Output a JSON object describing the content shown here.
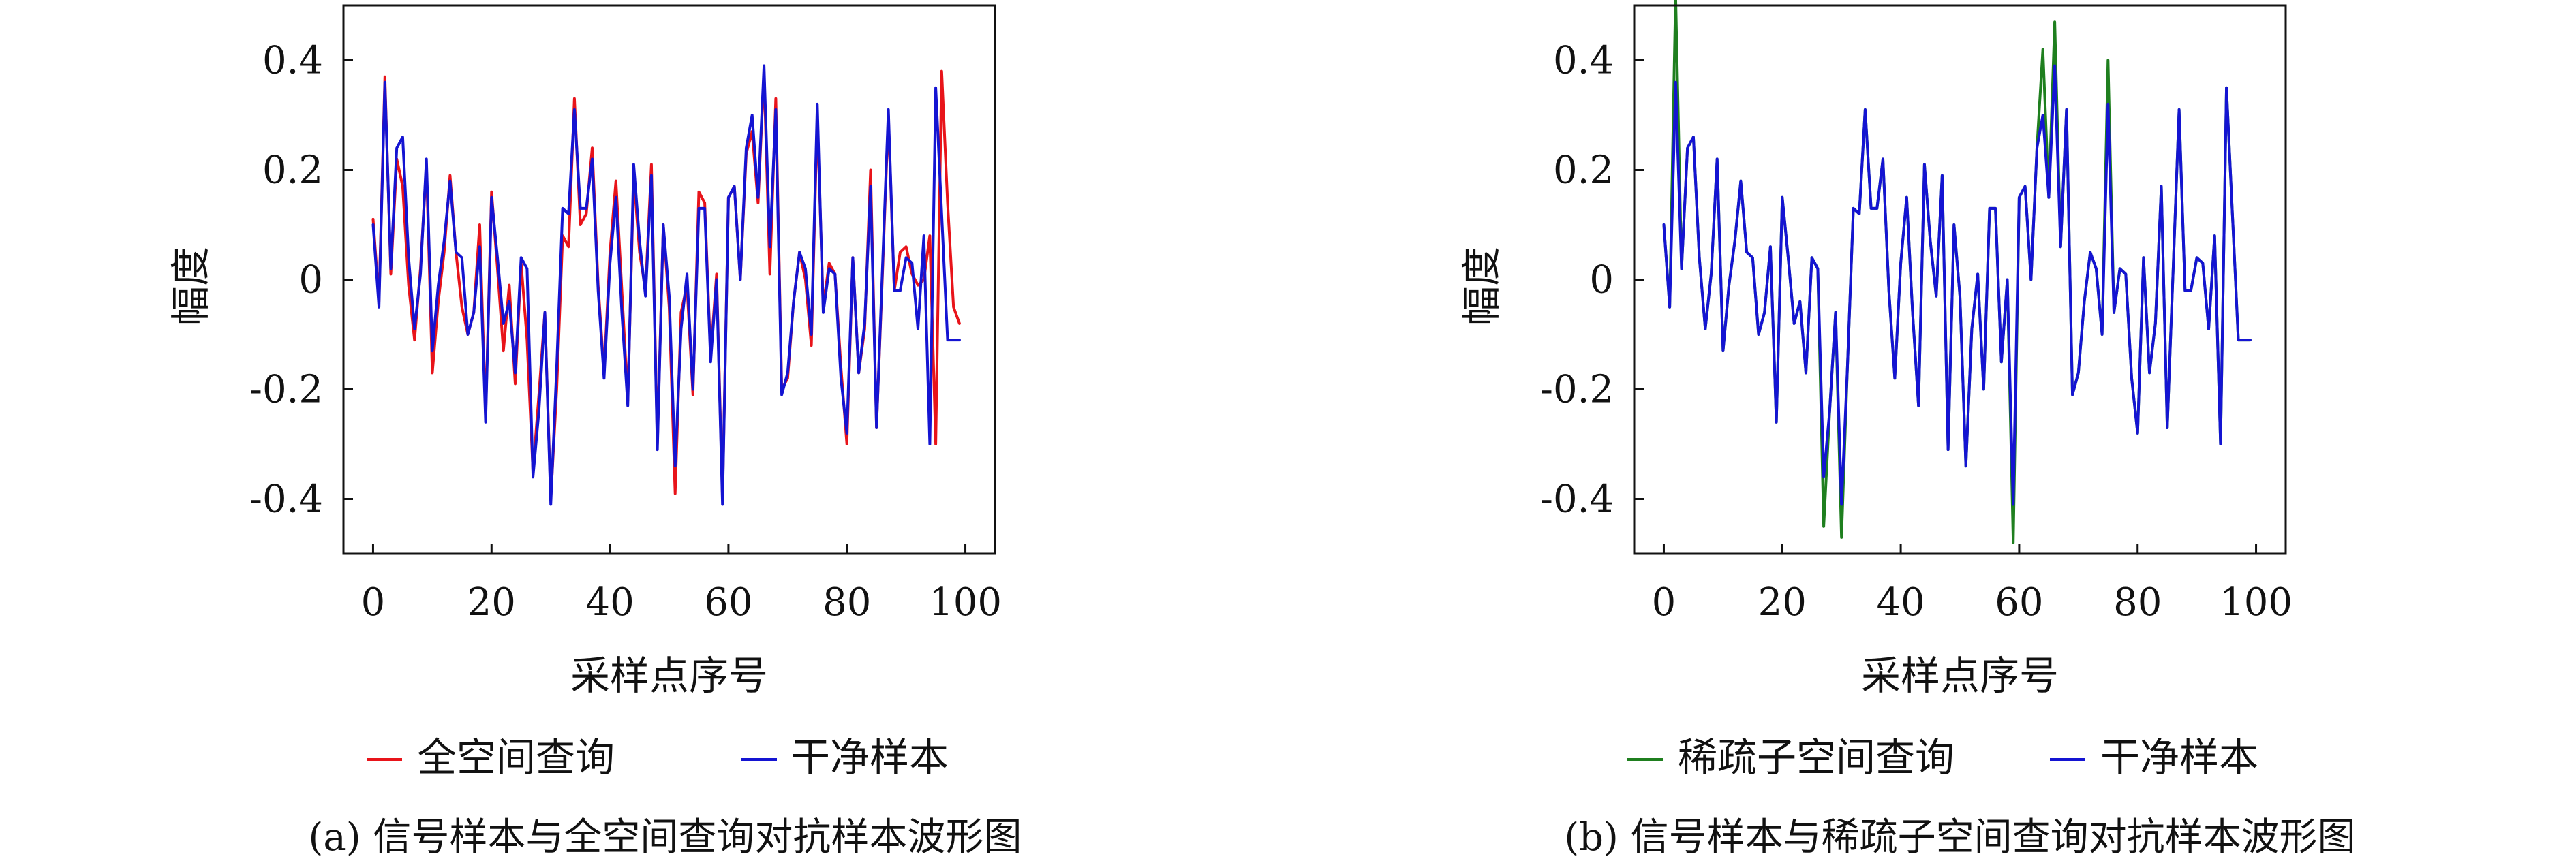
{
  "figure": {
    "xlabel": "采样点序号",
    "ylabel": "幅度",
    "xticks": [
      "0",
      "20",
      "40",
      "60",
      "80",
      "100"
    ],
    "yticks": [
      "0.4",
      "0.2",
      "0",
      "-0.2",
      "-0.4"
    ]
  },
  "colors": {
    "red": "#e8141a",
    "blue": "#1414d2",
    "green": "#1f7f1f"
  },
  "chart_data": [
    {
      "type": "line",
      "caption": "(a) 信号样本与全空间查询对抗样本波形图",
      "xlabel": "采样点序号",
      "ylabel": "幅度",
      "xlim": [
        -5,
        105
      ],
      "ylim": [
        -0.5,
        0.5
      ],
      "xticks": [
        0,
        20,
        40,
        60,
        80,
        100
      ],
      "yticks": [
        0.4,
        0.2,
        0,
        -0.2,
        -0.4
      ],
      "legend_position": "bottom",
      "series": [
        {
          "name": "全空间查询",
          "color": "#e8141a",
          "values": [
            0.11,
            -0.04,
            0.37,
            0.01,
            0.22,
            0.17,
            -0.01,
            -0.11,
            0.02,
            0.21,
            -0.17,
            -0.04,
            0.05,
            0.19,
            0.05,
            -0.05,
            -0.1,
            -0.06,
            0.1,
            -0.25,
            0.16,
            0.02,
            -0.13,
            -0.01,
            -0.19,
            0.03,
            -0.11,
            -0.35,
            -0.21,
            -0.06,
            -0.4,
            -0.2,
            0.08,
            0.06,
            0.33,
            0.1,
            0.12,
            0.24,
            -0.01,
            -0.17,
            0.05,
            0.18,
            -0.02,
            -0.22,
            0.19,
            0.05,
            -0.02,
            0.21,
            -0.3,
            0.1,
            -0.05,
            -0.39,
            -0.06,
            -0.01,
            -0.21,
            0.16,
            0.14,
            -0.14,
            0.01,
            -0.4,
            0.15,
            0.17,
            0.0,
            0.23,
            0.27,
            0.14,
            0.38,
            0.01,
            0.33,
            -0.2,
            -0.18,
            -0.04,
            0.05,
            0.0,
            -0.12,
            0.3,
            -0.05,
            0.03,
            0.01,
            -0.16,
            -0.3,
            0.04,
            -0.17,
            -0.09,
            0.2,
            -0.27,
            0.01,
            0.3,
            -0.02,
            0.05,
            0.06,
            0.01,
            -0.01,
            0.0,
            0.08,
            -0.3,
            0.38,
            0.14,
            -0.05,
            -0.08
          ]
        },
        {
          "name": "干净样本",
          "color": "#1414d2",
          "values": [
            0.1,
            -0.05,
            0.36,
            0.02,
            0.24,
            0.26,
            0.04,
            -0.09,
            0.01,
            0.22,
            -0.13,
            -0.01,
            0.07,
            0.18,
            0.05,
            0.04,
            -0.1,
            -0.06,
            0.06,
            -0.26,
            0.15,
            0.04,
            -0.08,
            -0.04,
            -0.17,
            0.04,
            0.02,
            -0.36,
            -0.24,
            -0.06,
            -0.41,
            -0.16,
            0.13,
            0.12,
            0.31,
            0.13,
            0.13,
            0.22,
            -0.02,
            -0.18,
            0.03,
            0.15,
            -0.06,
            -0.23,
            0.21,
            0.07,
            -0.03,
            0.19,
            -0.31,
            0.1,
            -0.03,
            -0.34,
            -0.09,
            0.01,
            -0.2,
            0.13,
            0.13,
            -0.15,
            0.0,
            -0.41,
            0.15,
            0.17,
            0.0,
            0.24,
            0.3,
            0.15,
            0.39,
            0.06,
            0.31,
            -0.21,
            -0.17,
            -0.04,
            0.05,
            0.02,
            -0.1,
            0.32,
            -0.06,
            0.02,
            0.01,
            -0.18,
            -0.28,
            0.04,
            -0.17,
            -0.08,
            0.17,
            -0.27,
            0.02,
            0.31,
            -0.02,
            -0.02,
            0.04,
            0.03,
            -0.09,
            0.08,
            -0.3,
            0.35,
            0.12,
            -0.11,
            -0.11,
            -0.11
          ]
        }
      ]
    },
    {
      "type": "line",
      "caption": "(b) 信号样本与稀疏子空间查询对抗样本波形图",
      "xlabel": "采样点序号",
      "ylabel": "幅度",
      "xlim": [
        -5,
        105
      ],
      "ylim": [
        -0.5,
        0.5
      ],
      "xticks": [
        0,
        20,
        40,
        60,
        80,
        100
      ],
      "yticks": [
        0.4,
        0.2,
        0,
        -0.2,
        -0.4
      ],
      "legend_position": "bottom",
      "series": [
        {
          "name": "稀疏子空间查询",
          "color": "#1f7f1f",
          "values": [
            0.1,
            -0.05,
            0.52,
            0.02,
            0.24,
            0.26,
            0.04,
            -0.09,
            0.01,
            0.22,
            -0.13,
            -0.01,
            0.07,
            0.18,
            0.05,
            0.04,
            -0.1,
            -0.06,
            0.06,
            -0.26,
            0.15,
            0.04,
            -0.08,
            -0.04,
            -0.17,
            0.04,
            0.02,
            -0.45,
            -0.24,
            -0.06,
            -0.47,
            -0.16,
            0.13,
            0.12,
            0.31,
            0.13,
            0.13,
            0.22,
            -0.02,
            -0.18,
            0.03,
            0.15,
            -0.06,
            -0.23,
            0.21,
            0.07,
            -0.03,
            0.19,
            -0.31,
            0.1,
            -0.03,
            -0.34,
            -0.09,
            0.01,
            -0.2,
            0.13,
            0.13,
            -0.15,
            0.0,
            -0.48,
            0.15,
            0.17,
            0.0,
            0.24,
            0.42,
            0.15,
            0.47,
            0.06,
            0.31,
            -0.21,
            -0.17,
            -0.04,
            0.05,
            0.02,
            -0.1,
            0.4,
            -0.06,
            0.02,
            0.01,
            -0.18,
            -0.28,
            0.04,
            -0.17,
            -0.08,
            0.17,
            -0.27,
            0.02,
            0.31,
            -0.02,
            -0.02,
            0.04,
            0.03,
            -0.09,
            0.08,
            -0.3,
            0.35,
            0.12,
            -0.11,
            -0.11,
            -0.11
          ]
        },
        {
          "name": "干净样本",
          "color": "#1414d2",
          "values": [
            0.1,
            -0.05,
            0.36,
            0.02,
            0.24,
            0.26,
            0.04,
            -0.09,
            0.01,
            0.22,
            -0.13,
            -0.01,
            0.07,
            0.18,
            0.05,
            0.04,
            -0.1,
            -0.06,
            0.06,
            -0.26,
            0.15,
            0.04,
            -0.08,
            -0.04,
            -0.17,
            0.04,
            0.02,
            -0.36,
            -0.24,
            -0.06,
            -0.41,
            -0.16,
            0.13,
            0.12,
            0.31,
            0.13,
            0.13,
            0.22,
            -0.02,
            -0.18,
            0.03,
            0.15,
            -0.06,
            -0.23,
            0.21,
            0.07,
            -0.03,
            0.19,
            -0.31,
            0.1,
            -0.03,
            -0.34,
            -0.09,
            0.01,
            -0.2,
            0.13,
            0.13,
            -0.15,
            0.0,
            -0.41,
            0.15,
            0.17,
            0.0,
            0.24,
            0.3,
            0.15,
            0.39,
            0.06,
            0.31,
            -0.21,
            -0.17,
            -0.04,
            0.05,
            0.02,
            -0.1,
            0.32,
            -0.06,
            0.02,
            0.01,
            -0.18,
            -0.28,
            0.04,
            -0.17,
            -0.08,
            0.17,
            -0.27,
            0.02,
            0.31,
            -0.02,
            -0.02,
            0.04,
            0.03,
            -0.09,
            0.08,
            -0.3,
            0.35,
            0.12,
            -0.11,
            -0.11,
            -0.11
          ]
        }
      ]
    }
  ]
}
